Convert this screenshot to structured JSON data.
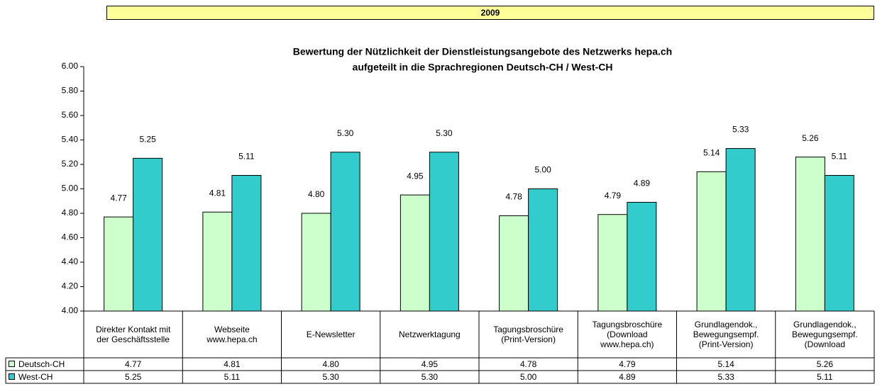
{
  "chart_data": {
    "type": "bar",
    "header": "2009",
    "title": "Bewertung der Nützlichkeit der Dienstleistungsangebote des Netzwerks hepa.ch",
    "subtitle": "aufgeteilt in die Sprachregionen Deutsch-CH / West-CH",
    "categories": [
      "Direkter Kontakt mit\nder Geschäftsstelle",
      "Webseite\nwww.hepa.ch",
      "E-Newsletter",
      "Netzwerktagung",
      "Tagungsbroschüre\n(Print-Version)",
      "Tagungsbroschüre\n(Download\nwww.hepa.ch)",
      "Grundlagendok.,\nBewegungsempf.\n(Print-Version)",
      "Grundlagendok.,\nBewegungsempf.\n(Download"
    ],
    "series": [
      {
        "name": "Deutsch-CH",
        "color": "#ccffcc",
        "values": [
          4.77,
          4.81,
          4.8,
          4.95,
          4.78,
          4.79,
          5.14,
          5.26
        ],
        "value_labels": [
          "4.77",
          "4.81",
          "4.80",
          "4.95",
          "4.78",
          "4.79",
          "5.14",
          "5.26"
        ]
      },
      {
        "name": "West-CH",
        "color": "#33cccc",
        "values": [
          5.25,
          5.11,
          5.3,
          5.3,
          5.0,
          4.89,
          5.33,
          5.11
        ],
        "value_labels": [
          "5.25",
          "5.11",
          "5.30",
          "5.30",
          "5.00",
          "4.89",
          "5.33",
          "5.11"
        ]
      }
    ],
    "ylim": [
      4,
      6
    ],
    "yticks": [
      {
        "value": 4,
        "label": "4.00"
      },
      {
        "value": 4.2,
        "label": "4.20"
      },
      {
        "value": 4.4,
        "label": "4.40"
      },
      {
        "value": 4.6,
        "label": "4.60"
      },
      {
        "value": 4.8,
        "label": "4.80"
      },
      {
        "value": 5,
        "label": "5.00"
      },
      {
        "value": 5.2,
        "label": "5.20"
      },
      {
        "value": 5.4,
        "label": "5.40"
      },
      {
        "value": 5.6,
        "label": "5.60"
      },
      {
        "value": 5.8,
        "label": "5.80"
      },
      {
        "value": 6,
        "label": "6.00"
      }
    ]
  }
}
